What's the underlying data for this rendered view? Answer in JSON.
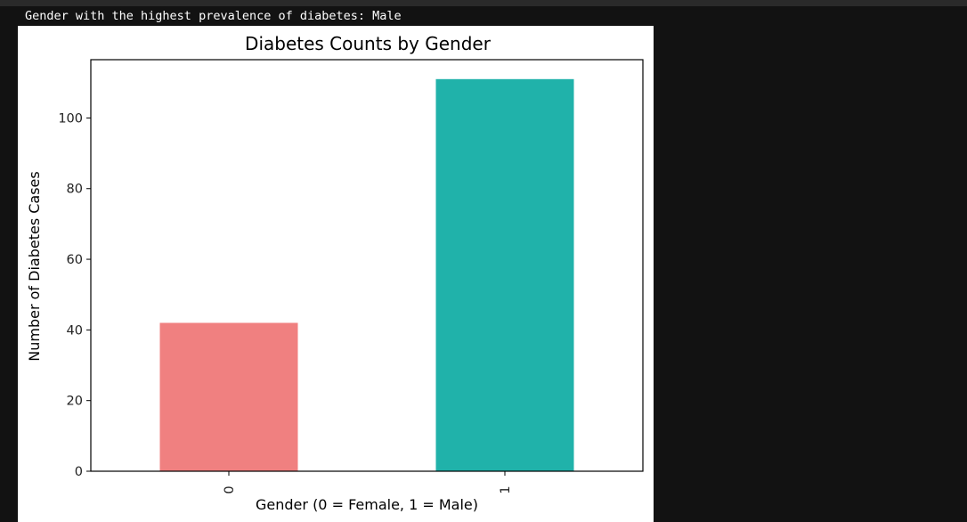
{
  "output_text": "Gender with the highest prevalence of diabetes: Male",
  "chart_data": {
    "type": "bar",
    "title": "Diabetes Counts by Gender",
    "xlabel": "Gender (0 = Female, 1 = Male)",
    "ylabel": "Number of Diabetes Cases",
    "categories": [
      "0",
      "1"
    ],
    "values": [
      42,
      111
    ],
    "colors": [
      "#f08080",
      "#20b2aa"
    ],
    "ylim": [
      0,
      116.5
    ],
    "yticks": [
      0,
      20,
      40,
      60,
      80,
      100
    ],
    "grid": false,
    "legend": "none"
  }
}
